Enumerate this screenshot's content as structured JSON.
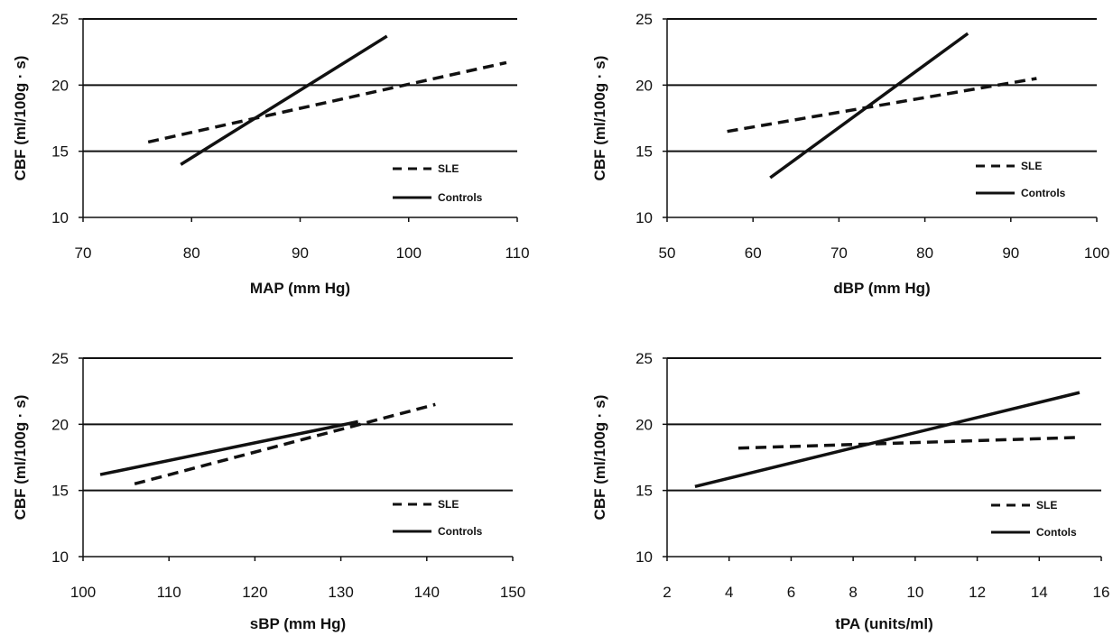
{
  "chart_data": [
    {
      "type": "line",
      "xlabel": "MAP (mm Hg)",
      "ylabel": "CBF (ml/100g · s)",
      "xlim": [
        70,
        110
      ],
      "ylim": [
        10,
        25
      ],
      "xticks": [
        "70",
        "80",
        "90",
        "100",
        "110"
      ],
      "yticks": [
        "10",
        "15",
        "20",
        "25"
      ],
      "grid": "horizontal at 15, 20, 25",
      "legend_position": "bottom-right",
      "series": [
        {
          "name": "SLE",
          "style": "dashed",
          "x": [
            76,
            109
          ],
          "y": [
            15.7,
            21.7
          ]
        },
        {
          "name": "Controls",
          "style": "solid",
          "x": [
            79,
            98
          ],
          "y": [
            14.0,
            23.7
          ]
        }
      ]
    },
    {
      "type": "line",
      "xlabel": "dBP (mm Hg)",
      "ylabel": "CBF (ml/100g · s)",
      "xlim": [
        50,
        100
      ],
      "ylim": [
        10,
        25
      ],
      "xticks": [
        "50",
        "60",
        "70",
        "80",
        "90",
        "100"
      ],
      "yticks": [
        "10",
        "15",
        "20",
        "25"
      ],
      "grid": "horizontal at 15, 20, 25",
      "legend_position": "bottom-right",
      "series": [
        {
          "name": "SLE",
          "style": "dashed",
          "x": [
            57,
            93
          ],
          "y": [
            16.5,
            20.5
          ]
        },
        {
          "name": "Controls",
          "style": "solid",
          "x": [
            62,
            85
          ],
          "y": [
            13.0,
            23.9
          ]
        }
      ]
    },
    {
      "type": "line",
      "xlabel": "sBP (mm Hg)",
      "ylabel": "CBF (ml/100g · s)",
      "xlim": [
        100,
        150
      ],
      "ylim": [
        10,
        25
      ],
      "xticks": [
        "100",
        "110",
        "120",
        "130",
        "140",
        "150"
      ],
      "yticks": [
        "10",
        "15",
        "20",
        "25"
      ],
      "grid": "horizontal at 15, 20, 25",
      "legend_position": "bottom-right",
      "series": [
        {
          "name": "SLE",
          "style": "dashed",
          "x": [
            106,
            141
          ],
          "y": [
            15.5,
            21.5
          ]
        },
        {
          "name": "Controls",
          "style": "solid",
          "x": [
            102,
            132
          ],
          "y": [
            16.2,
            20.2
          ]
        }
      ]
    },
    {
      "type": "line",
      "xlabel": "tPA (units/ml)",
      "ylabel": "CBF (ml/100g · s)",
      "xlim": [
        2,
        16
      ],
      "ylim": [
        10,
        25
      ],
      "xticks": [
        "2",
        "4",
        "6",
        "8",
        "10",
        "12",
        "14",
        "16"
      ],
      "yticks": [
        "10",
        "15",
        "20",
        "25"
      ],
      "grid": "horizontal at 15, 20, 25",
      "legend_position": "bottom-right",
      "series": [
        {
          "name": "SLE",
          "style": "dashed",
          "x": [
            4.3,
            15.2
          ],
          "y": [
            18.2,
            19.0
          ]
        },
        {
          "name": "Contols",
          "style": "solid",
          "x": [
            2.9,
            15.3
          ],
          "y": [
            15.3,
            22.4
          ]
        }
      ]
    }
  ]
}
